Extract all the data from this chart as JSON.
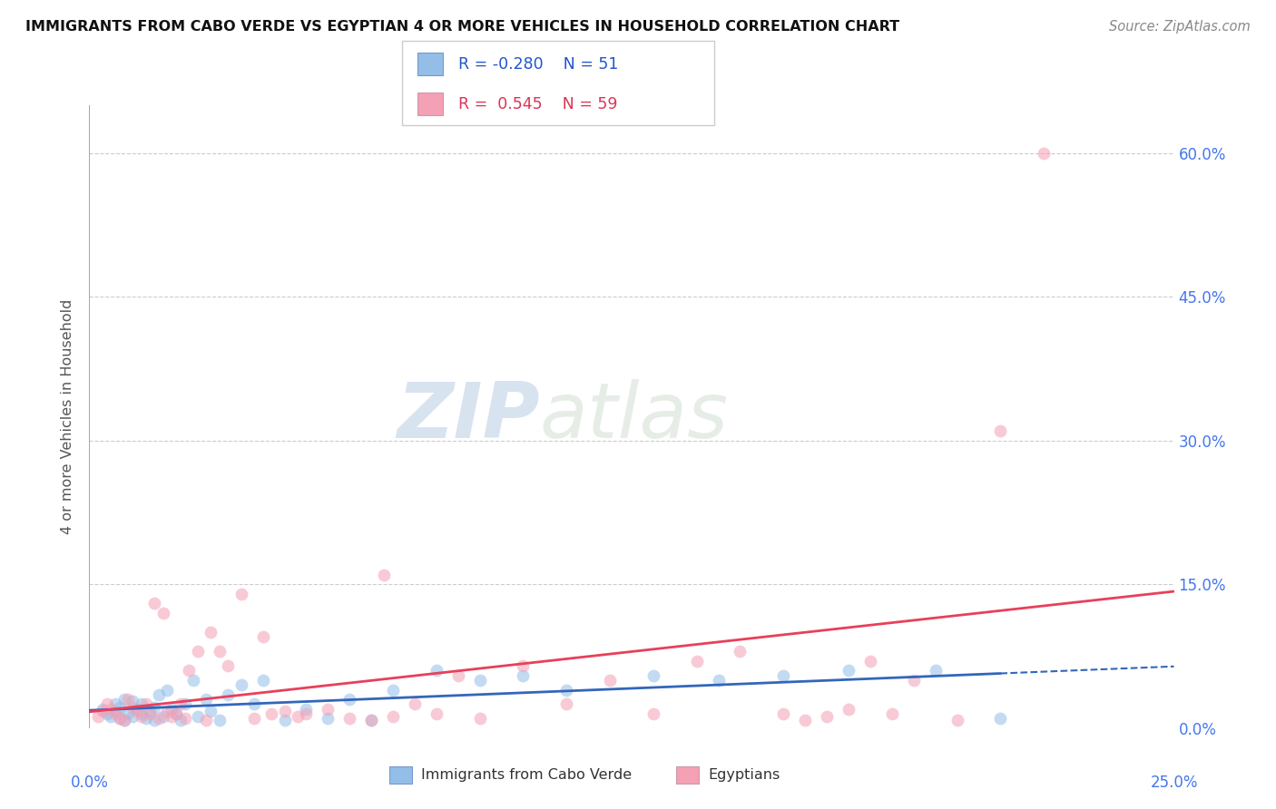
{
  "title": "IMMIGRANTS FROM CABO VERDE VS EGYPTIAN 4 OR MORE VEHICLES IN HOUSEHOLD CORRELATION CHART",
  "source": "Source: ZipAtlas.com",
  "ylabel": "4 or more Vehicles in Household",
  "legend_blue_R": "-0.280",
  "legend_blue_N": "51",
  "legend_pink_R": "0.545",
  "legend_pink_N": "59",
  "blue_color": "#92BEE8",
  "pink_color": "#F4A0B5",
  "blue_line_color": "#3366BB",
  "pink_line_color": "#E8405A",
  "watermark_zip": "ZIP",
  "watermark_atlas": "atlas",
  "xlim": [
    0.0,
    0.25
  ],
  "ylim": [
    0.0,
    0.65
  ],
  "ytick_vals": [
    0.0,
    0.15,
    0.3,
    0.45,
    0.6
  ],
  "xtick_vals": [
    0.0,
    0.05,
    0.1,
    0.15,
    0.2,
    0.25
  ],
  "cabo_verde_x": [
    0.003,
    0.004,
    0.005,
    0.006,
    0.006,
    0.007,
    0.007,
    0.008,
    0.008,
    0.009,
    0.01,
    0.01,
    0.011,
    0.012,
    0.012,
    0.013,
    0.014,
    0.015,
    0.015,
    0.016,
    0.017,
    0.018,
    0.019,
    0.02,
    0.021,
    0.022,
    0.024,
    0.025,
    0.027,
    0.028,
    0.03,
    0.032,
    0.035,
    0.038,
    0.04,
    0.045,
    0.05,
    0.055,
    0.06,
    0.065,
    0.07,
    0.08,
    0.09,
    0.1,
    0.11,
    0.13,
    0.145,
    0.16,
    0.175,
    0.195,
    0.21
  ],
  "cabo_verde_y": [
    0.02,
    0.015,
    0.012,
    0.018,
    0.025,
    0.01,
    0.022,
    0.008,
    0.03,
    0.016,
    0.012,
    0.028,
    0.02,
    0.015,
    0.025,
    0.01,
    0.018,
    0.022,
    0.008,
    0.035,
    0.012,
    0.04,
    0.02,
    0.015,
    0.008,
    0.025,
    0.05,
    0.012,
    0.03,
    0.018,
    0.008,
    0.035,
    0.045,
    0.025,
    0.05,
    0.008,
    0.02,
    0.01,
    0.03,
    0.008,
    0.04,
    0.06,
    0.05,
    0.055,
    0.04,
    0.055,
    0.05,
    0.055,
    0.06,
    0.06,
    0.01
  ],
  "egyptian_x": [
    0.002,
    0.003,
    0.004,
    0.005,
    0.006,
    0.007,
    0.008,
    0.009,
    0.01,
    0.011,
    0.012,
    0.013,
    0.014,
    0.015,
    0.016,
    0.017,
    0.018,
    0.019,
    0.02,
    0.021,
    0.022,
    0.023,
    0.025,
    0.027,
    0.028,
    0.03,
    0.032,
    0.035,
    0.038,
    0.04,
    0.042,
    0.045,
    0.048,
    0.05,
    0.055,
    0.06,
    0.065,
    0.068,
    0.07,
    0.075,
    0.08,
    0.085,
    0.09,
    0.1,
    0.11,
    0.12,
    0.13,
    0.14,
    0.15,
    0.16,
    0.165,
    0.17,
    0.175,
    0.18,
    0.185,
    0.19,
    0.2,
    0.21,
    0.22
  ],
  "egyptian_y": [
    0.012,
    0.018,
    0.025,
    0.02,
    0.015,
    0.01,
    0.008,
    0.03,
    0.022,
    0.018,
    0.012,
    0.025,
    0.015,
    0.13,
    0.01,
    0.12,
    0.018,
    0.012,
    0.015,
    0.025,
    0.01,
    0.06,
    0.08,
    0.008,
    0.1,
    0.08,
    0.065,
    0.14,
    0.01,
    0.095,
    0.015,
    0.018,
    0.012,
    0.015,
    0.02,
    0.01,
    0.008,
    0.16,
    0.012,
    0.025,
    0.015,
    0.055,
    0.01,
    0.065,
    0.025,
    0.05,
    0.015,
    0.07,
    0.08,
    0.015,
    0.008,
    0.012,
    0.02,
    0.07,
    0.015,
    0.05,
    0.008,
    0.31,
    0.6
  ]
}
